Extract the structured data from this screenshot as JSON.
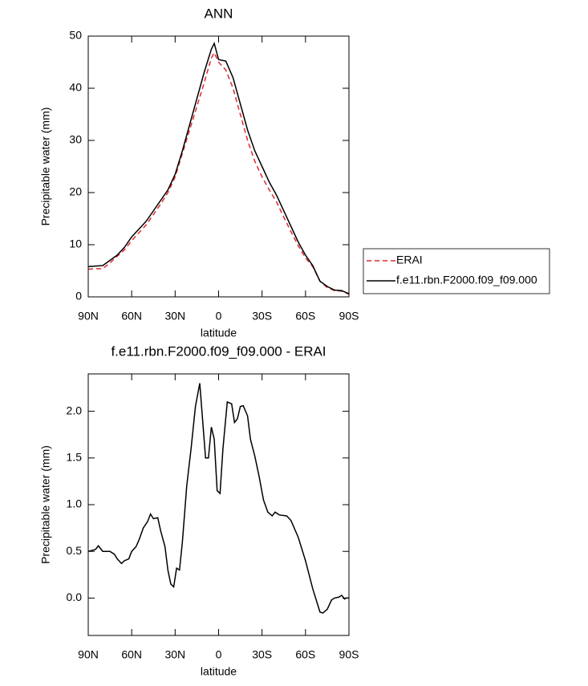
{
  "chart_data": [
    {
      "type": "line",
      "title": "ANN",
      "xlabel": "latitude",
      "ylabel": "Precipitable water (mm)",
      "x": [
        90,
        85,
        80,
        75,
        70,
        65,
        60,
        55,
        50,
        45,
        40,
        35,
        30,
        25,
        20,
        15,
        10,
        5,
        3,
        0,
        -5,
        -10,
        -15,
        -20,
        -25,
        -30,
        -35,
        -40,
        -45,
        -50,
        -55,
        -60,
        -65,
        -70,
        -75,
        -80,
        -85,
        -90
      ],
      "series": [
        {
          "name": "ERAI",
          "color": "#e0282e",
          "dash": true,
          "values": [
            5.3,
            5.4,
            5.4,
            6.5,
            7.8,
            9.0,
            10.8,
            12.3,
            13.8,
            15.8,
            17.8,
            20.0,
            23.0,
            27.5,
            32.0,
            36.5,
            41.0,
            45.8,
            46.8,
            45.0,
            43.5,
            40.0,
            35.0,
            30.0,
            26.0,
            23.0,
            20.5,
            18.2,
            15.3,
            12.5,
            9.8,
            7.5,
            5.8,
            3.0,
            1.8,
            1.2,
            1.1,
            0.5
          ]
        },
        {
          "name": "f.e11.rbn.F2000.f09_f09.000",
          "color": "#000000",
          "dash": false,
          "values": [
            5.8,
            5.9,
            6.0,
            7.0,
            8.0,
            9.5,
            11.5,
            13.0,
            14.5,
            16.5,
            18.5,
            20.5,
            23.5,
            28.0,
            33.0,
            38.0,
            43.0,
            47.5,
            48.6,
            45.5,
            45.2,
            42.0,
            37.0,
            32.0,
            28.0,
            25.0,
            22.0,
            19.5,
            16.5,
            13.5,
            10.5,
            8.0,
            6.0,
            3.0,
            2.0,
            1.3,
            1.2,
            0.6
          ]
        }
      ],
      "xlim": [
        90,
        -90
      ],
      "xticks": [
        {
          "value": 90,
          "label": "90N"
        },
        {
          "value": 60,
          "label": "60N"
        },
        {
          "value": 30,
          "label": "30N"
        },
        0,
        {
          "value": -30,
          "label": "30S"
        },
        {
          "value": -60,
          "label": "60S"
        },
        {
          "value": -90,
          "label": "90S"
        }
      ],
      "ylim": [
        0,
        50
      ],
      "yticks": [
        0,
        10,
        20,
        30,
        40,
        50
      ],
      "legend": "outside-right"
    },
    {
      "type": "line",
      "title": "f.e11.rbn.F2000.f09_f09.000 - ERAI",
      "xlabel": "latitude",
      "ylabel": "Precipitable water (mm)",
      "x": [
        90,
        85,
        83,
        80,
        75,
        72,
        70,
        67,
        65,
        62,
        60,
        57,
        55,
        52,
        49,
        47,
        45,
        42,
        40,
        37,
        35,
        33,
        31,
        29,
        27,
        25,
        22,
        19,
        16,
        13,
        11,
        9,
        7,
        5,
        3,
        1,
        -1,
        -3,
        -6,
        -9,
        -11,
        -13,
        -15,
        -17,
        -20,
        -22,
        -25,
        -28,
        -31,
        -34,
        -37,
        -39,
        -42,
        -47,
        -50,
        -55,
        -60,
        -65,
        -68,
        -70,
        -72,
        -75,
        -78,
        -80,
        -83,
        -85,
        -87,
        -88,
        -90
      ],
      "values": [
        0.5,
        0.52,
        0.56,
        0.5,
        0.5,
        0.47,
        0.42,
        0.37,
        0.4,
        0.42,
        0.5,
        0.55,
        0.62,
        0.75,
        0.82,
        0.9,
        0.85,
        0.86,
        0.72,
        0.55,
        0.3,
        0.15,
        0.12,
        0.32,
        0.3,
        0.6,
        1.2,
        1.6,
        2.05,
        2.3,
        1.9,
        1.5,
        1.5,
        1.83,
        1.7,
        1.15,
        1.12,
        1.6,
        2.1,
        2.08,
        1.88,
        1.92,
        2.05,
        2.06,
        1.95,
        1.7,
        1.52,
        1.3,
        1.05,
        0.92,
        0.88,
        0.92,
        0.89,
        0.88,
        0.83,
        0.65,
        0.4,
        0.1,
        -0.05,
        -0.15,
        -0.16,
        -0.12,
        -0.02,
        0.0,
        0.01,
        0.03,
        -0.01,
        0.0,
        0.0
      ],
      "color": "#000000",
      "xlim": [
        90,
        -90
      ],
      "xticks": [
        {
          "value": 90,
          "label": "90N"
        },
        {
          "value": 60,
          "label": "60N"
        },
        {
          "value": 30,
          "label": "30N"
        },
        0,
        {
          "value": -30,
          "label": "30S"
        },
        {
          "value": -60,
          "label": "60S"
        },
        {
          "value": -90,
          "label": "90S"
        }
      ],
      "ylim": [
        -0.4,
        2.4
      ],
      "yticks": [
        {
          "value": 0,
          "label": "0.0"
        },
        0.5,
        {
          "value": 1,
          "label": "1.0"
        },
        1.5,
        {
          "value": 2,
          "label": "2.0"
        }
      ]
    }
  ]
}
